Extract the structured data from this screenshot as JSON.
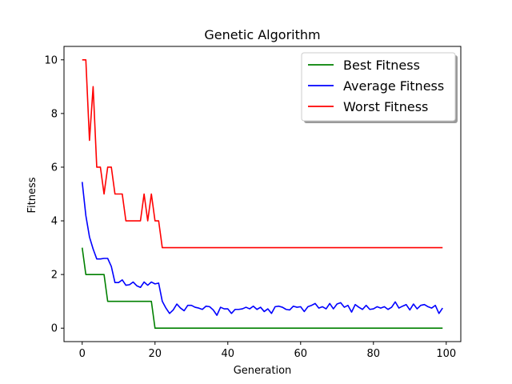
{
  "chart_data": {
    "type": "line",
    "title": "Genetic Algorithm",
    "xlabel": "Generation",
    "ylabel": "Fitness",
    "xlim": [
      -5,
      104
    ],
    "ylim": [
      -0.5,
      10.5
    ],
    "xticks": [
      0,
      20,
      40,
      60,
      80,
      100
    ],
    "yticks": [
      0,
      2,
      4,
      6,
      8,
      10
    ],
    "grid": false,
    "legend_position": "top-right",
    "series": [
      {
        "name": "Best Fitness",
        "color": "#008000",
        "x": [
          0,
          1,
          2,
          3,
          4,
          5,
          6,
          7,
          8,
          9,
          10,
          11,
          12,
          13,
          14,
          15,
          16,
          17,
          18,
          19,
          20,
          21,
          22,
          23,
          24,
          25,
          26,
          27,
          28,
          29,
          30,
          31,
          32,
          33,
          34,
          35,
          36,
          37,
          38,
          39,
          40,
          41,
          42,
          43,
          44,
          45,
          46,
          47,
          48,
          49,
          50,
          51,
          52,
          53,
          54,
          55,
          56,
          57,
          58,
          59,
          60,
          61,
          62,
          63,
          64,
          65,
          66,
          67,
          68,
          69,
          70,
          71,
          72,
          73,
          74,
          75,
          76,
          77,
          78,
          79,
          80,
          81,
          82,
          83,
          84,
          85,
          86,
          87,
          88,
          89,
          90,
          91,
          92,
          93,
          94,
          95,
          96,
          97,
          98,
          99
        ],
        "values": [
          3,
          2,
          2,
          2,
          2,
          2,
          2,
          1,
          1,
          1,
          1,
          1,
          1,
          1,
          1,
          1,
          1,
          1,
          1,
          1,
          0,
          0,
          0,
          0,
          0,
          0,
          0,
          0,
          0,
          0,
          0,
          0,
          0,
          0,
          0,
          0,
          0,
          0,
          0,
          0,
          0,
          0,
          0,
          0,
          0,
          0,
          0,
          0,
          0,
          0,
          0,
          0,
          0,
          0,
          0,
          0,
          0,
          0,
          0,
          0,
          0,
          0,
          0,
          0,
          0,
          0,
          0,
          0,
          0,
          0,
          0,
          0,
          0,
          0,
          0,
          0,
          0,
          0,
          0,
          0,
          0,
          0,
          0,
          0,
          0,
          0,
          0,
          0,
          0,
          0,
          0,
          0,
          0,
          0,
          0,
          0,
          0,
          0,
          0,
          0
        ]
      },
      {
        "name": "Average Fitness",
        "color": "#0000ff",
        "x": [
          0,
          1,
          2,
          3,
          4,
          5,
          6,
          7,
          8,
          9,
          10,
          11,
          12,
          13,
          14,
          15,
          16,
          17,
          18,
          19,
          20,
          21,
          22,
          23,
          24,
          25,
          26,
          27,
          28,
          29,
          30,
          31,
          32,
          33,
          34,
          35,
          36,
          37,
          38,
          39,
          40,
          41,
          42,
          43,
          44,
          45,
          46,
          47,
          48,
          49,
          50,
          51,
          52,
          53,
          54,
          55,
          56,
          57,
          58,
          59,
          60,
          61,
          62,
          63,
          64,
          65,
          66,
          67,
          68,
          69,
          70,
          71,
          72,
          73,
          74,
          75,
          76,
          77,
          78,
          79,
          80,
          81,
          82,
          83,
          84,
          85,
          86,
          87,
          88,
          89,
          90,
          91,
          92,
          93,
          94,
          95,
          96,
          97,
          98,
          99
        ],
        "values": [
          5.45,
          4.2,
          3.4,
          2.95,
          2.58,
          2.58,
          2.6,
          2.6,
          2.3,
          1.7,
          1.7,
          1.8,
          1.6,
          1.62,
          1.72,
          1.58,
          1.52,
          1.72,
          1.6,
          1.72,
          1.65,
          1.68,
          1.0,
          0.75,
          0.55,
          0.68,
          0.9,
          0.75,
          0.65,
          0.85,
          0.85,
          0.78,
          0.75,
          0.7,
          0.82,
          0.8,
          0.68,
          0.48,
          0.78,
          0.72,
          0.72,
          0.55,
          0.7,
          0.7,
          0.72,
          0.78,
          0.72,
          0.82,
          0.7,
          0.78,
          0.62,
          0.72,
          0.55,
          0.8,
          0.82,
          0.78,
          0.7,
          0.68,
          0.82,
          0.78,
          0.8,
          0.62,
          0.8,
          0.85,
          0.92,
          0.75,
          0.8,
          0.72,
          0.92,
          0.72,
          0.9,
          0.95,
          0.78,
          0.85,
          0.6,
          0.88,
          0.78,
          0.7,
          0.85,
          0.7,
          0.72,
          0.8,
          0.75,
          0.8,
          0.7,
          0.78,
          0.98,
          0.75,
          0.82,
          0.88,
          0.68,
          0.9,
          0.72,
          0.85,
          0.88,
          0.8,
          0.75,
          0.85,
          0.55,
          0.75
        ]
      },
      {
        "name": "Worst Fitness",
        "color": "#ff0000",
        "x": [
          0,
          1,
          2,
          3,
          4,
          5,
          6,
          7,
          8,
          9,
          10,
          11,
          12,
          13,
          14,
          15,
          16,
          17,
          18,
          19,
          20,
          21,
          22,
          23,
          24,
          25,
          26,
          27,
          28,
          29,
          30,
          31,
          32,
          33,
          34,
          35,
          36,
          37,
          38,
          39,
          40,
          41,
          42,
          43,
          44,
          45,
          46,
          47,
          48,
          49,
          50,
          51,
          52,
          53,
          54,
          55,
          56,
          57,
          58,
          59,
          60,
          61,
          62,
          63,
          64,
          65,
          66,
          67,
          68,
          69,
          70,
          71,
          72,
          73,
          74,
          75,
          76,
          77,
          78,
          79,
          80,
          81,
          82,
          83,
          84,
          85,
          86,
          87,
          88,
          89,
          90,
          91,
          92,
          93,
          94,
          95,
          96,
          97,
          98,
          99
        ],
        "values": [
          10,
          10,
          7,
          9,
          6,
          6,
          5,
          6,
          6,
          5,
          5,
          5,
          4,
          4,
          4,
          4,
          4,
          5,
          4,
          5,
          4,
          4,
          3,
          3,
          3,
          3,
          3,
          3,
          3,
          3,
          3,
          3,
          3,
          3,
          3,
          3,
          3,
          3,
          3,
          3,
          3,
          3,
          3,
          3,
          3,
          3,
          3,
          3,
          3,
          3,
          3,
          3,
          3,
          3,
          3,
          3,
          3,
          3,
          3,
          3,
          3,
          3,
          3,
          3,
          3,
          3,
          3,
          3,
          3,
          3,
          3,
          3,
          3,
          3,
          3,
          3,
          3,
          3,
          3,
          3,
          3,
          3,
          3,
          3,
          3,
          3,
          3,
          3,
          3,
          3,
          3,
          3,
          3,
          3,
          3,
          3,
          3,
          3,
          3,
          3
        ]
      }
    ]
  }
}
